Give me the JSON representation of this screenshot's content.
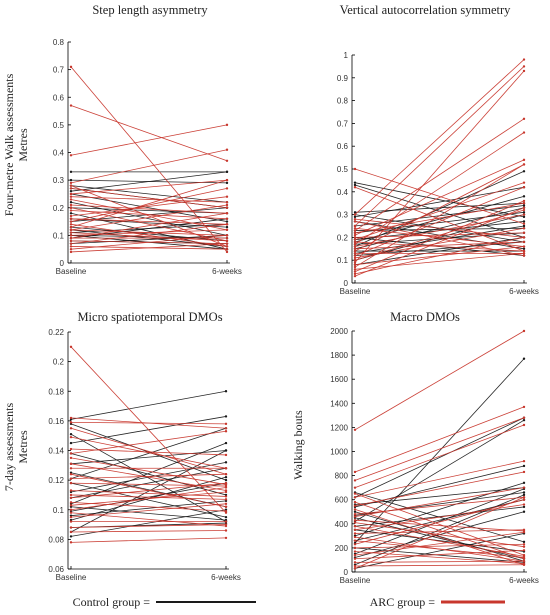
{
  "colors": {
    "control": "#1a1a1a",
    "arc": "#c8372d"
  },
  "row_labels": {
    "top": [
      "Four-metre Walk assessments",
      "Metres"
    ],
    "bottom": [
      "7-day assessments",
      "Metres"
    ]
  },
  "legend": {
    "control_label": "Control group =",
    "arc_label": "ARC group ="
  },
  "chart_data": [
    {
      "type": "line",
      "title": "Step length asymmetry",
      "ylabel": "",
      "categories": [
        "Baseline",
        "6-weeks"
      ],
      "ylim": [
        0,
        0.8
      ],
      "yticks": [
        0,
        0.1,
        0.2,
        0.3,
        0.4,
        0.5,
        0.6,
        0.7,
        0.8
      ],
      "ytick_labels": [
        "0",
        "0.1",
        "0.2",
        "0.3",
        "0.4",
        "0.5",
        "0.6",
        "0.7",
        "0.8"
      ],
      "control": [
        [
          0.33,
          0.33
        ],
        [
          0.3,
          0.29
        ],
        [
          0.28,
          0.22
        ],
        [
          0.27,
          0.2
        ],
        [
          0.26,
          0.33
        ],
        [
          0.25,
          0.15
        ],
        [
          0.22,
          0.1
        ],
        [
          0.2,
          0.18
        ],
        [
          0.18,
          0.05
        ],
        [
          0.16,
          0.13
        ],
        [
          0.15,
          0.2
        ],
        [
          0.13,
          0.08
        ],
        [
          0.12,
          0.06
        ],
        [
          0.11,
          0.14
        ],
        [
          0.1,
          0.05
        ],
        [
          0.1,
          0.09
        ],
        [
          0.09,
          0.16
        ],
        [
          0.08,
          0.07
        ],
        [
          0.07,
          0.1
        ]
      ],
      "arc": [
        [
          0.71,
          0.04
        ],
        [
          0.57,
          0.37
        ],
        [
          0.39,
          0.5
        ],
        [
          0.29,
          0.41
        ],
        [
          0.28,
          0.06
        ],
        [
          0.27,
          0.2
        ],
        [
          0.25,
          0.3
        ],
        [
          0.24,
          0.22
        ],
        [
          0.23,
          0.12
        ],
        [
          0.21,
          0.18
        ],
        [
          0.2,
          0.08
        ],
        [
          0.19,
          0.16
        ],
        [
          0.17,
          0.24
        ],
        [
          0.16,
          0.14
        ],
        [
          0.15,
          0.27
        ],
        [
          0.14,
          0.06
        ],
        [
          0.13,
          0.3
        ],
        [
          0.12,
          0.1
        ],
        [
          0.12,
          0.21
        ],
        [
          0.11,
          0.08
        ],
        [
          0.1,
          0.12
        ],
        [
          0.09,
          0.09
        ],
        [
          0.09,
          0.18
        ],
        [
          0.08,
          0.07
        ],
        [
          0.07,
          0.14
        ],
        [
          0.06,
          0.05
        ],
        [
          0.05,
          0.1
        ],
        [
          0.04,
          0.07
        ]
      ]
    },
    {
      "type": "line",
      "title": "Vertical autocorrelation symmetry",
      "ylabel": "",
      "categories": [
        "Baseline",
        "6-weeks"
      ],
      "ylim": [
        0,
        1
      ],
      "yticks": [
        0,
        0.1,
        0.2,
        0.3,
        0.4,
        0.5,
        0.6,
        0.7,
        0.8,
        0.9,
        1
      ],
      "ytick_labels": [
        "0",
        "0.1",
        "0.2",
        "0.3",
        "0.4",
        "0.5",
        "0.6",
        "0.7",
        "0.8",
        "0.9",
        "1"
      ],
      "control": [
        [
          0.44,
          0.29
        ],
        [
          0.43,
          0.2
        ],
        [
          0.31,
          0.35
        ],
        [
          0.3,
          0.18
        ],
        [
          0.29,
          0.42
        ],
        [
          0.27,
          0.15
        ],
        [
          0.25,
          0.34
        ],
        [
          0.23,
          0.24
        ],
        [
          0.22,
          0.31
        ],
        [
          0.2,
          0.12
        ],
        [
          0.19,
          0.27
        ],
        [
          0.18,
          0.38
        ],
        [
          0.17,
          0.22
        ],
        [
          0.16,
          0.49
        ],
        [
          0.15,
          0.33
        ],
        [
          0.14,
          0.14
        ],
        [
          0.13,
          0.25
        ],
        [
          0.12,
          0.18
        ],
        [
          0.1,
          0.3
        ],
        [
          0.08,
          0.2
        ]
      ],
      "arc": [
        [
          0.5,
          0.26
        ],
        [
          0.42,
          0.14
        ],
        [
          0.3,
          0.98
        ],
        [
          0.28,
          0.2
        ],
        [
          0.27,
          0.12
        ],
        [
          0.25,
          0.95
        ],
        [
          0.24,
          0.16
        ],
        [
          0.23,
          0.72
        ],
        [
          0.22,
          0.35
        ],
        [
          0.21,
          0.54
        ],
        [
          0.2,
          0.22
        ],
        [
          0.19,
          0.44
        ],
        [
          0.18,
          0.14
        ],
        [
          0.17,
          0.66
        ],
        [
          0.16,
          0.3
        ],
        [
          0.15,
          0.18
        ],
        [
          0.14,
          0.52
        ],
        [
          0.13,
          0.13
        ],
        [
          0.12,
          0.42
        ],
        [
          0.11,
          0.24
        ],
        [
          0.1,
          0.32
        ],
        [
          0.09,
          0.93
        ],
        [
          0.08,
          0.16
        ],
        [
          0.07,
          0.52
        ],
        [
          0.06,
          0.13
        ],
        [
          0.05,
          0.36
        ],
        [
          0.04,
          0.2
        ],
        [
          0.03,
          0.33
        ]
      ]
    },
    {
      "type": "line",
      "title": "Micro spatiotemporal DMOs",
      "ylabel": "",
      "categories": [
        "Baseline",
        "6-weeks"
      ],
      "ylim": [
        0.06,
        0.22
      ],
      "yticks": [
        0.06,
        0.08,
        0.1,
        0.12,
        0.14,
        0.16,
        0.18,
        0.2,
        0.22
      ],
      "ytick_labels": [
        "0.06",
        "0.08",
        "0.1",
        "0.12",
        "0.14",
        "0.16",
        "0.18",
        "0.2",
        "0.22"
      ],
      "control": [
        [
          0.161,
          0.18
        ],
        [
          0.158,
          0.12
        ],
        [
          0.151,
          0.092
        ],
        [
          0.145,
          0.163
        ],
        [
          0.138,
          0.11
        ],
        [
          0.131,
          0.14
        ],
        [
          0.125,
          0.102
        ],
        [
          0.121,
          0.155
        ],
        [
          0.118,
          0.095
        ],
        [
          0.112,
          0.132
        ],
        [
          0.108,
          0.128
        ],
        [
          0.104,
          0.145
        ],
        [
          0.102,
          0.093
        ],
        [
          0.099,
          0.118
        ],
        [
          0.096,
          0.106
        ],
        [
          0.093,
          0.122
        ],
        [
          0.088,
          0.091
        ],
        [
          0.085,
          0.14
        ],
        [
          0.082,
          0.1
        ]
      ],
      "arc": [
        [
          0.21,
          0.098
        ],
        [
          0.162,
          0.155
        ],
        [
          0.159,
          0.158
        ],
        [
          0.155,
          0.124
        ],
        [
          0.149,
          0.128
        ],
        [
          0.141,
          0.137
        ],
        [
          0.138,
          0.153
        ],
        [
          0.135,
          0.117
        ],
        [
          0.131,
          0.113
        ],
        [
          0.128,
          0.128
        ],
        [
          0.124,
          0.102
        ],
        [
          0.121,
          0.124
        ],
        [
          0.118,
          0.116
        ],
        [
          0.113,
          0.109
        ],
        [
          0.11,
          0.107
        ],
        [
          0.108,
          0.118
        ],
        [
          0.105,
          0.099
        ],
        [
          0.103,
          0.112
        ],
        [
          0.1,
          0.115
        ],
        [
          0.098,
          0.089
        ],
        [
          0.095,
          0.104
        ],
        [
          0.092,
          0.092
        ],
        [
          0.088,
          0.09
        ],
        [
          0.085,
          0.086
        ],
        [
          0.078,
          0.081
        ]
      ]
    },
    {
      "type": "line",
      "title": "Macro DMOs",
      "ylabel": "Walking bouts",
      "categories": [
        "Baseline",
        "6-weeks"
      ],
      "ylim": [
        0,
        2000
      ],
      "yticks": [
        0,
        200,
        400,
        600,
        800,
        1000,
        1200,
        1400,
        1600,
        1800,
        2000
      ],
      "ytick_labels": [
        "0",
        "200",
        "400",
        "600",
        "800",
        "1000",
        "1200",
        "1400",
        "1600",
        "1800",
        "2000"
      ],
      "control": [
        [
          660,
          250
        ],
        [
          620,
          1280
        ],
        [
          560,
          700
        ],
        [
          540,
          880
        ],
        [
          500,
          90
        ],
        [
          470,
          660
        ],
        [
          450,
          110
        ],
        [
          420,
          1260
        ],
        [
          380,
          540
        ],
        [
          350,
          170
        ],
        [
          300,
          740
        ],
        [
          260,
          600
        ],
        [
          240,
          1770
        ],
        [
          200,
          80
        ],
        [
          150,
          690
        ],
        [
          120,
          500
        ],
        [
          60,
          640
        ],
        [
          30,
          320
        ]
      ],
      "arc": [
        [
          1180,
          2000
        ],
        [
          830,
          1370
        ],
        [
          760,
          1280
        ],
        [
          700,
          1220
        ],
        [
          650,
          140
        ],
        [
          620,
          920
        ],
        [
          580,
          110
        ],
        [
          550,
          830
        ],
        [
          520,
          60
        ],
        [
          480,
          620
        ],
        [
          460,
          700
        ],
        [
          430,
          340
        ],
        [
          410,
          210
        ],
        [
          380,
          130
        ],
        [
          350,
          560
        ],
        [
          320,
          350
        ],
        [
          290,
          90
        ],
        [
          260,
          120
        ],
        [
          230,
          600
        ],
        [
          200,
          230
        ],
        [
          170,
          70
        ],
        [
          140,
          330
        ],
        [
          110,
          180
        ],
        [
          80,
          90
        ],
        [
          50,
          60
        ],
        [
          30,
          620
        ]
      ]
    }
  ]
}
